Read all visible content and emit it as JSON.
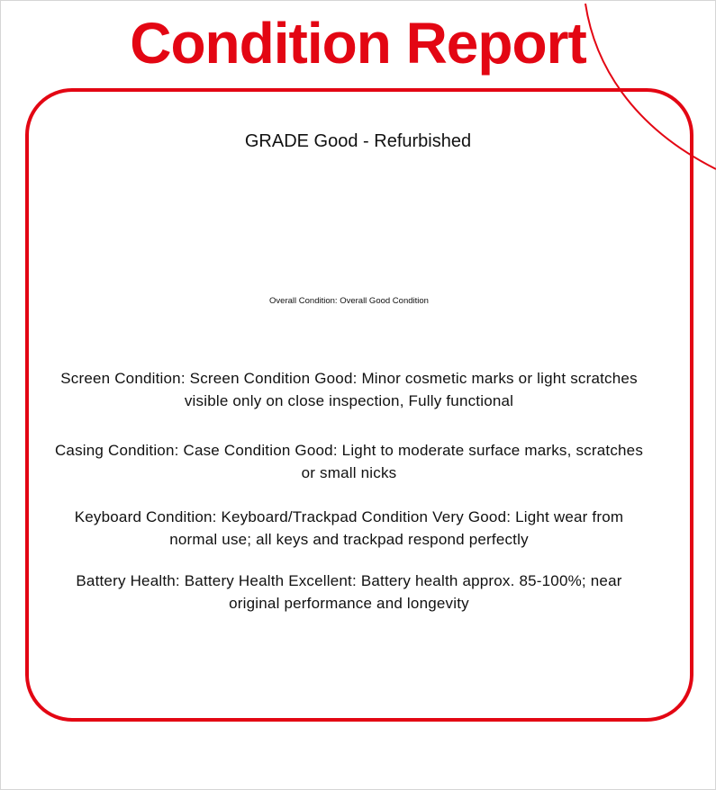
{
  "title": "Condition Report",
  "accent_color": "#e30613",
  "grade": "GRADE Good - Refurbished",
  "overall": "Overall Condition: Overall Good Condition",
  "items": [
    {
      "label": "Screen Condition: Screen Condition Good: Minor cosmetic marks or light scratches visible only on close inspection, Fully functional"
    },
    {
      "label": "Casing Condition: Case Condition Good: Light to moderate surface marks, scratches or small nicks"
    },
    {
      "label": "Keyboard Condition: Keyboard/Trackpad Condition Very Good: Light wear from normal use; all keys and trackpad respond perfectly"
    },
    {
      "label": "Battery Health: Battery Health Excellent: Battery health approx. 85-100%; near original performance and longevity"
    }
  ]
}
